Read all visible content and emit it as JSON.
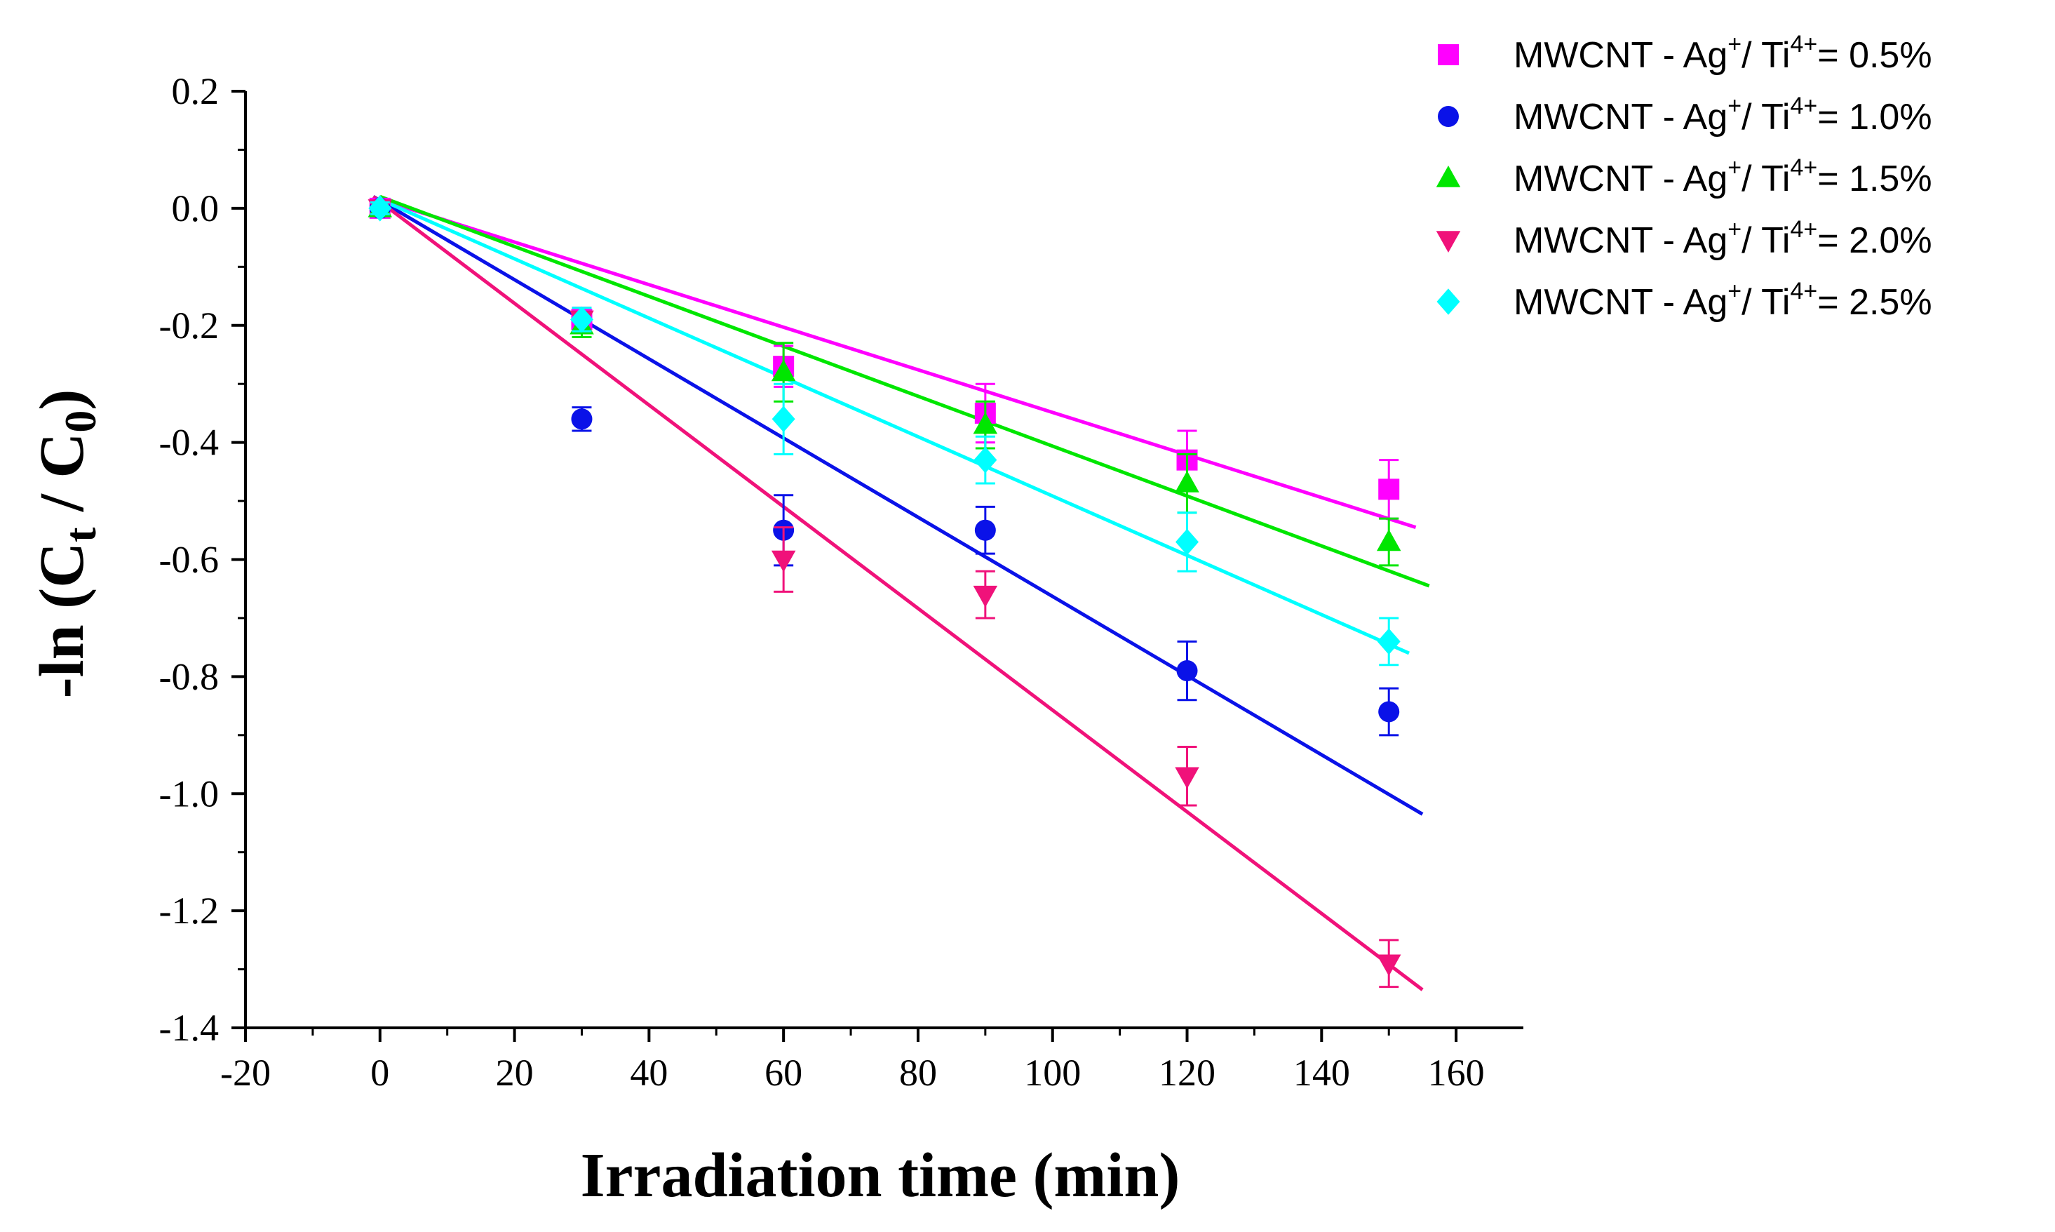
{
  "chart_data": {
    "type": "scatter",
    "xlabel": "Irradiation time (min)",
    "ylabel_parts": {
      "prefix": "-ln (C",
      "sub1": "t",
      "middle": " / C",
      "sub2": "0",
      "suffix": ")"
    },
    "xlim": [
      -20,
      170
    ],
    "ylim": [
      -1.4,
      0.2
    ],
    "xticks": [
      -20,
      0,
      20,
      40,
      60,
      80,
      100,
      120,
      140,
      160
    ],
    "xtick_labels": [
      "-20",
      "0",
      "20",
      "40",
      "60",
      "80",
      "100",
      "120",
      "140",
      "160"
    ],
    "yticks": [
      0.2,
      0.0,
      -0.2,
      -0.4,
      -0.6,
      -0.8,
      -1.0,
      -1.2,
      -1.4
    ],
    "ytick_labels": [
      "0.2",
      "0.0",
      "-0.2",
      "-0.4",
      "-0.6",
      "-0.8",
      "-1.0",
      "-1.2",
      "-1.4"
    ],
    "x": [
      0,
      30,
      60,
      90,
      120,
      150
    ],
    "legend_position": "top-right",
    "series": [
      {
        "name_prefix": "MWCNT - Ag",
        "sup1": "+",
        "name_mid": "/ Ti",
        "sup2": "4+",
        "name_suffix": "= 0.5%",
        "marker": "square",
        "color": "#FF00FF",
        "values": [
          0.0,
          -0.19,
          -0.27,
          -0.35,
          -0.43,
          -0.48
        ],
        "errors": [
          0.01,
          0.02,
          0.035,
          0.05,
          0.05,
          0.05
        ],
        "fit": {
          "x0": 0,
          "y0": 0.015,
          "x1": 154,
          "y1": -0.545
        }
      },
      {
        "name_prefix": "MWCNT - Ag",
        "sup1": "+",
        "name_mid": "/ Ti",
        "sup2": "4+",
        "name_suffix": "= 1.0%",
        "marker": "circle",
        "color": "#0A12E8",
        "values": [
          0.0,
          -0.36,
          -0.55,
          -0.55,
          -0.79,
          -0.86
        ],
        "errors": [
          0.01,
          0.02,
          0.06,
          0.04,
          0.05,
          0.04
        ],
        "fit": {
          "x0": -1,
          "y0": 0.02,
          "x1": 155,
          "y1": -1.035
        }
      },
      {
        "name_prefix": "MWCNT - Ag",
        "sup1": "+",
        "name_mid": "/ Ti",
        "sup2": "4+",
        "name_suffix": "= 1.5%",
        "marker": "triangle-up",
        "color": "#00E600",
        "values": [
          0.0,
          -0.2,
          -0.28,
          -0.37,
          -0.47,
          -0.57
        ],
        "errors": [
          0.01,
          0.02,
          0.05,
          0.04,
          0.05,
          0.04
        ],
        "fit": {
          "x0": 0,
          "y0": 0.02,
          "x1": 156,
          "y1": -0.645
        }
      },
      {
        "name_prefix": "MWCNT - Ag",
        "sup1": "+",
        "name_mid": "/ Ti",
        "sup2": "4+",
        "name_suffix": "= 2.0%",
        "marker": "triangle-down",
        "color": "#F0127A",
        "values": [
          0.0,
          -0.19,
          -0.6,
          -0.66,
          -0.97,
          -1.29
        ],
        "errors": [
          0.01,
          0.02,
          0.055,
          0.04,
          0.05,
          0.04
        ],
        "fit": {
          "x0": -1,
          "y0": 0.02,
          "x1": 155,
          "y1": -1.335
        }
      },
      {
        "name_prefix": "MWCNT - Ag",
        "sup1": "+",
        "name_mid": "/ Ti",
        "sup2": "4+",
        "name_suffix": "= 2.5%",
        "marker": "diamond",
        "color": "#00FFFF",
        "values": [
          0.0,
          -0.19,
          -0.36,
          -0.43,
          -0.57,
          -0.74
        ],
        "errors": [
          0.01,
          0.02,
          0.06,
          0.04,
          0.05,
          0.04
        ],
        "fit": {
          "x0": 0,
          "y0": 0.015,
          "x1": 153,
          "y1": -0.76
        }
      }
    ]
  }
}
